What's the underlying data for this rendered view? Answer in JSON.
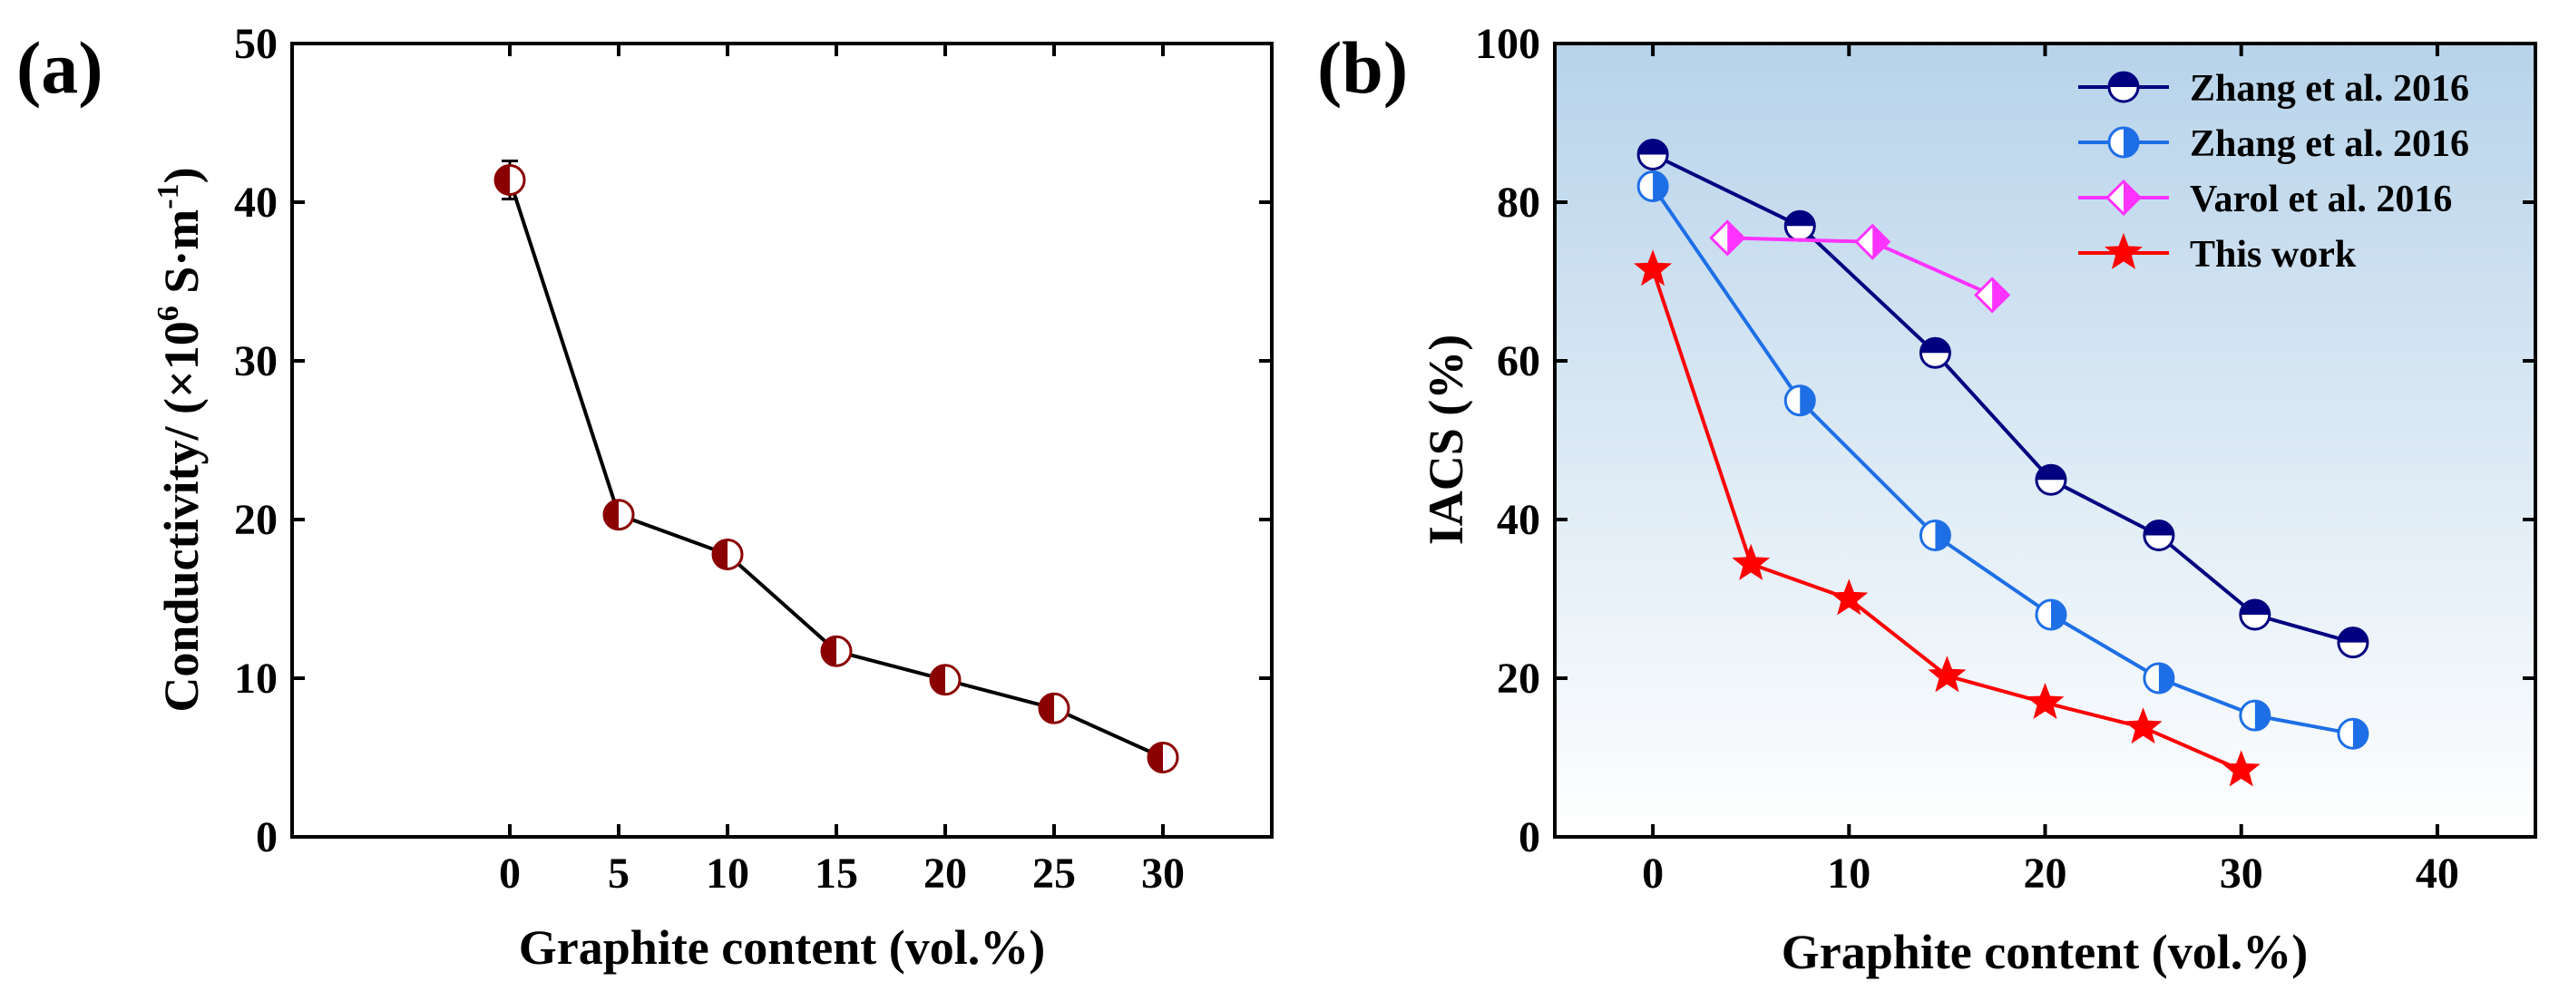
{
  "chart_data": [
    {
      "panel_label": "(a)",
      "type": "line",
      "xlabel": "Graphite content (vol.%)",
      "ylabel": {
        "prefix": "Conductivity/ (×10",
        "sup1": "6",
        "mid": " S·m",
        "sup2": "-1",
        "suffix": ")"
      },
      "xlim": [
        -10,
        35
      ],
      "ylim": [
        0,
        50
      ],
      "xticks": [
        0,
        5,
        10,
        15,
        20,
        25,
        30
      ],
      "yticks": [
        0,
        10,
        20,
        30,
        40,
        50
      ],
      "grid": false,
      "series": [
        {
          "x": [
            0,
            5,
            10,
            15,
            20,
            25,
            30
          ],
          "y": [
            41.4,
            20.3,
            17.8,
            11.7,
            9.9,
            8.1,
            5.0
          ],
          "yerr": [
            1.2,
            0.5,
            0.6,
            0.6,
            0.5,
            0.5,
            0.6
          ],
          "line_color": "#000000",
          "marker": "circle-half-left",
          "marker_color": "#8b0000"
        }
      ]
    },
    {
      "panel_label": "(b)",
      "type": "line",
      "xlabel": "Graphite content (vol.%)",
      "ylabel": "IACS (%)",
      "xlim": [
        -5,
        45
      ],
      "ylim": [
        0,
        100
      ],
      "xticks": [
        0,
        10,
        20,
        30,
        40
      ],
      "yticks": [
        0,
        20,
        40,
        60,
        80,
        100
      ],
      "grid": false,
      "background": "gradient light-blue (top) to white (bottom)",
      "legend_position": "top-right",
      "series": [
        {
          "name": "Zhang et al. 2016",
          "x": [
            0,
            7.5,
            14.4,
            20.3,
            25.8,
            30.7,
            35.7
          ],
          "y": [
            86,
            77,
            61,
            45,
            38,
            28,
            24.5
          ],
          "color": "#000080",
          "marker": "circle-half-top"
        },
        {
          "name": "Zhang et al. 2016",
          "x": [
            0,
            7.5,
            14.4,
            20.3,
            25.8,
            30.7,
            35.7
          ],
          "y": [
            82,
            55,
            38,
            28,
            20,
            15.3,
            13
          ],
          "color": "#1e6fe6",
          "marker": "circle-half-right"
        },
        {
          "name": "Varol et al. 2016",
          "x": [
            3.8,
            11.2,
            17.3
          ],
          "y": [
            75.5,
            75,
            68.3
          ],
          "color": "#ff33ff",
          "marker": "diamond-half-right"
        },
        {
          "name": "This work",
          "x": [
            0,
            5,
            10,
            15,
            20,
            25,
            30
          ],
          "y": [
            71.5,
            34.4,
            30,
            20.3,
            16.9,
            13.8,
            8.4
          ],
          "color": "#ff0000",
          "marker": "star"
        }
      ]
    }
  ]
}
